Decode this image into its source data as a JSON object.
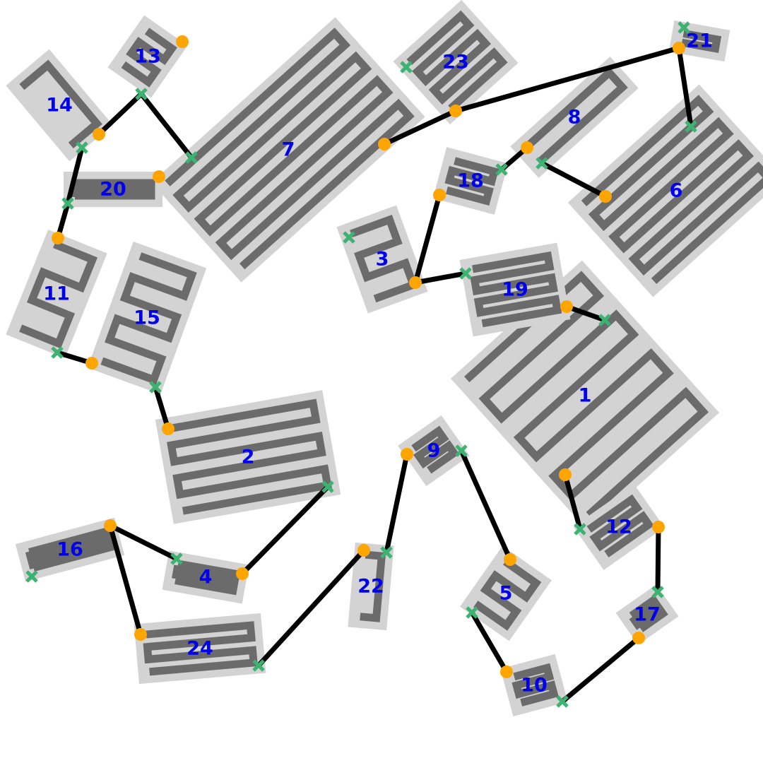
{
  "diagram": {
    "block_fill": "#d3d3d3",
    "meander_color": "#6b6b6b",
    "label_color": "#0000ee",
    "wire_color": "#000000",
    "pin_start_color": "#3cb371",
    "pin_end_color": "#ffa500",
    "pin_start_marker": "x",
    "pin_end_marker": "circle",
    "blocks": [
      {
        "id": "1"
      },
      {
        "id": "2"
      },
      {
        "id": "3"
      },
      {
        "id": "4"
      },
      {
        "id": "5"
      },
      {
        "id": "6"
      },
      {
        "id": "7"
      },
      {
        "id": "8"
      },
      {
        "id": "9"
      },
      {
        "id": "10"
      },
      {
        "id": "11"
      },
      {
        "id": "12"
      },
      {
        "id": "13"
      },
      {
        "id": "14"
      },
      {
        "id": "15"
      },
      {
        "id": "16"
      },
      {
        "id": "17"
      },
      {
        "id": "18"
      },
      {
        "id": "19"
      },
      {
        "id": "20"
      },
      {
        "id": "21"
      },
      {
        "id": "22"
      },
      {
        "id": "23"
      },
      {
        "id": "24"
      }
    ],
    "connections": [
      {
        "from": "13",
        "to": "7"
      },
      {
        "from": "13",
        "to": "14"
      },
      {
        "from": "14",
        "to": "20"
      },
      {
        "from": "20",
        "to": "11"
      },
      {
        "from": "11",
        "to": "15"
      },
      {
        "from": "15",
        "to": "2"
      },
      {
        "from": "2",
        "to": "4"
      },
      {
        "from": "4",
        "to": "16"
      },
      {
        "from": "16",
        "to": "24"
      },
      {
        "from": "24",
        "to": "22"
      },
      {
        "from": "22",
        "to": "9"
      },
      {
        "from": "9",
        "to": "5"
      },
      {
        "from": "5",
        "to": "10"
      },
      {
        "from": "10",
        "to": "17"
      },
      {
        "from": "17",
        "to": "12"
      },
      {
        "from": "12",
        "to": "1"
      },
      {
        "from": "1",
        "to": "19"
      },
      {
        "from": "19",
        "to": "3"
      },
      {
        "from": "3",
        "to": "18"
      },
      {
        "from": "18",
        "to": "8"
      },
      {
        "from": "8",
        "to": "6"
      },
      {
        "from": "6",
        "to": "21"
      },
      {
        "from": "21",
        "to": "23"
      },
      {
        "from": "23",
        "to": "7"
      }
    ]
  }
}
